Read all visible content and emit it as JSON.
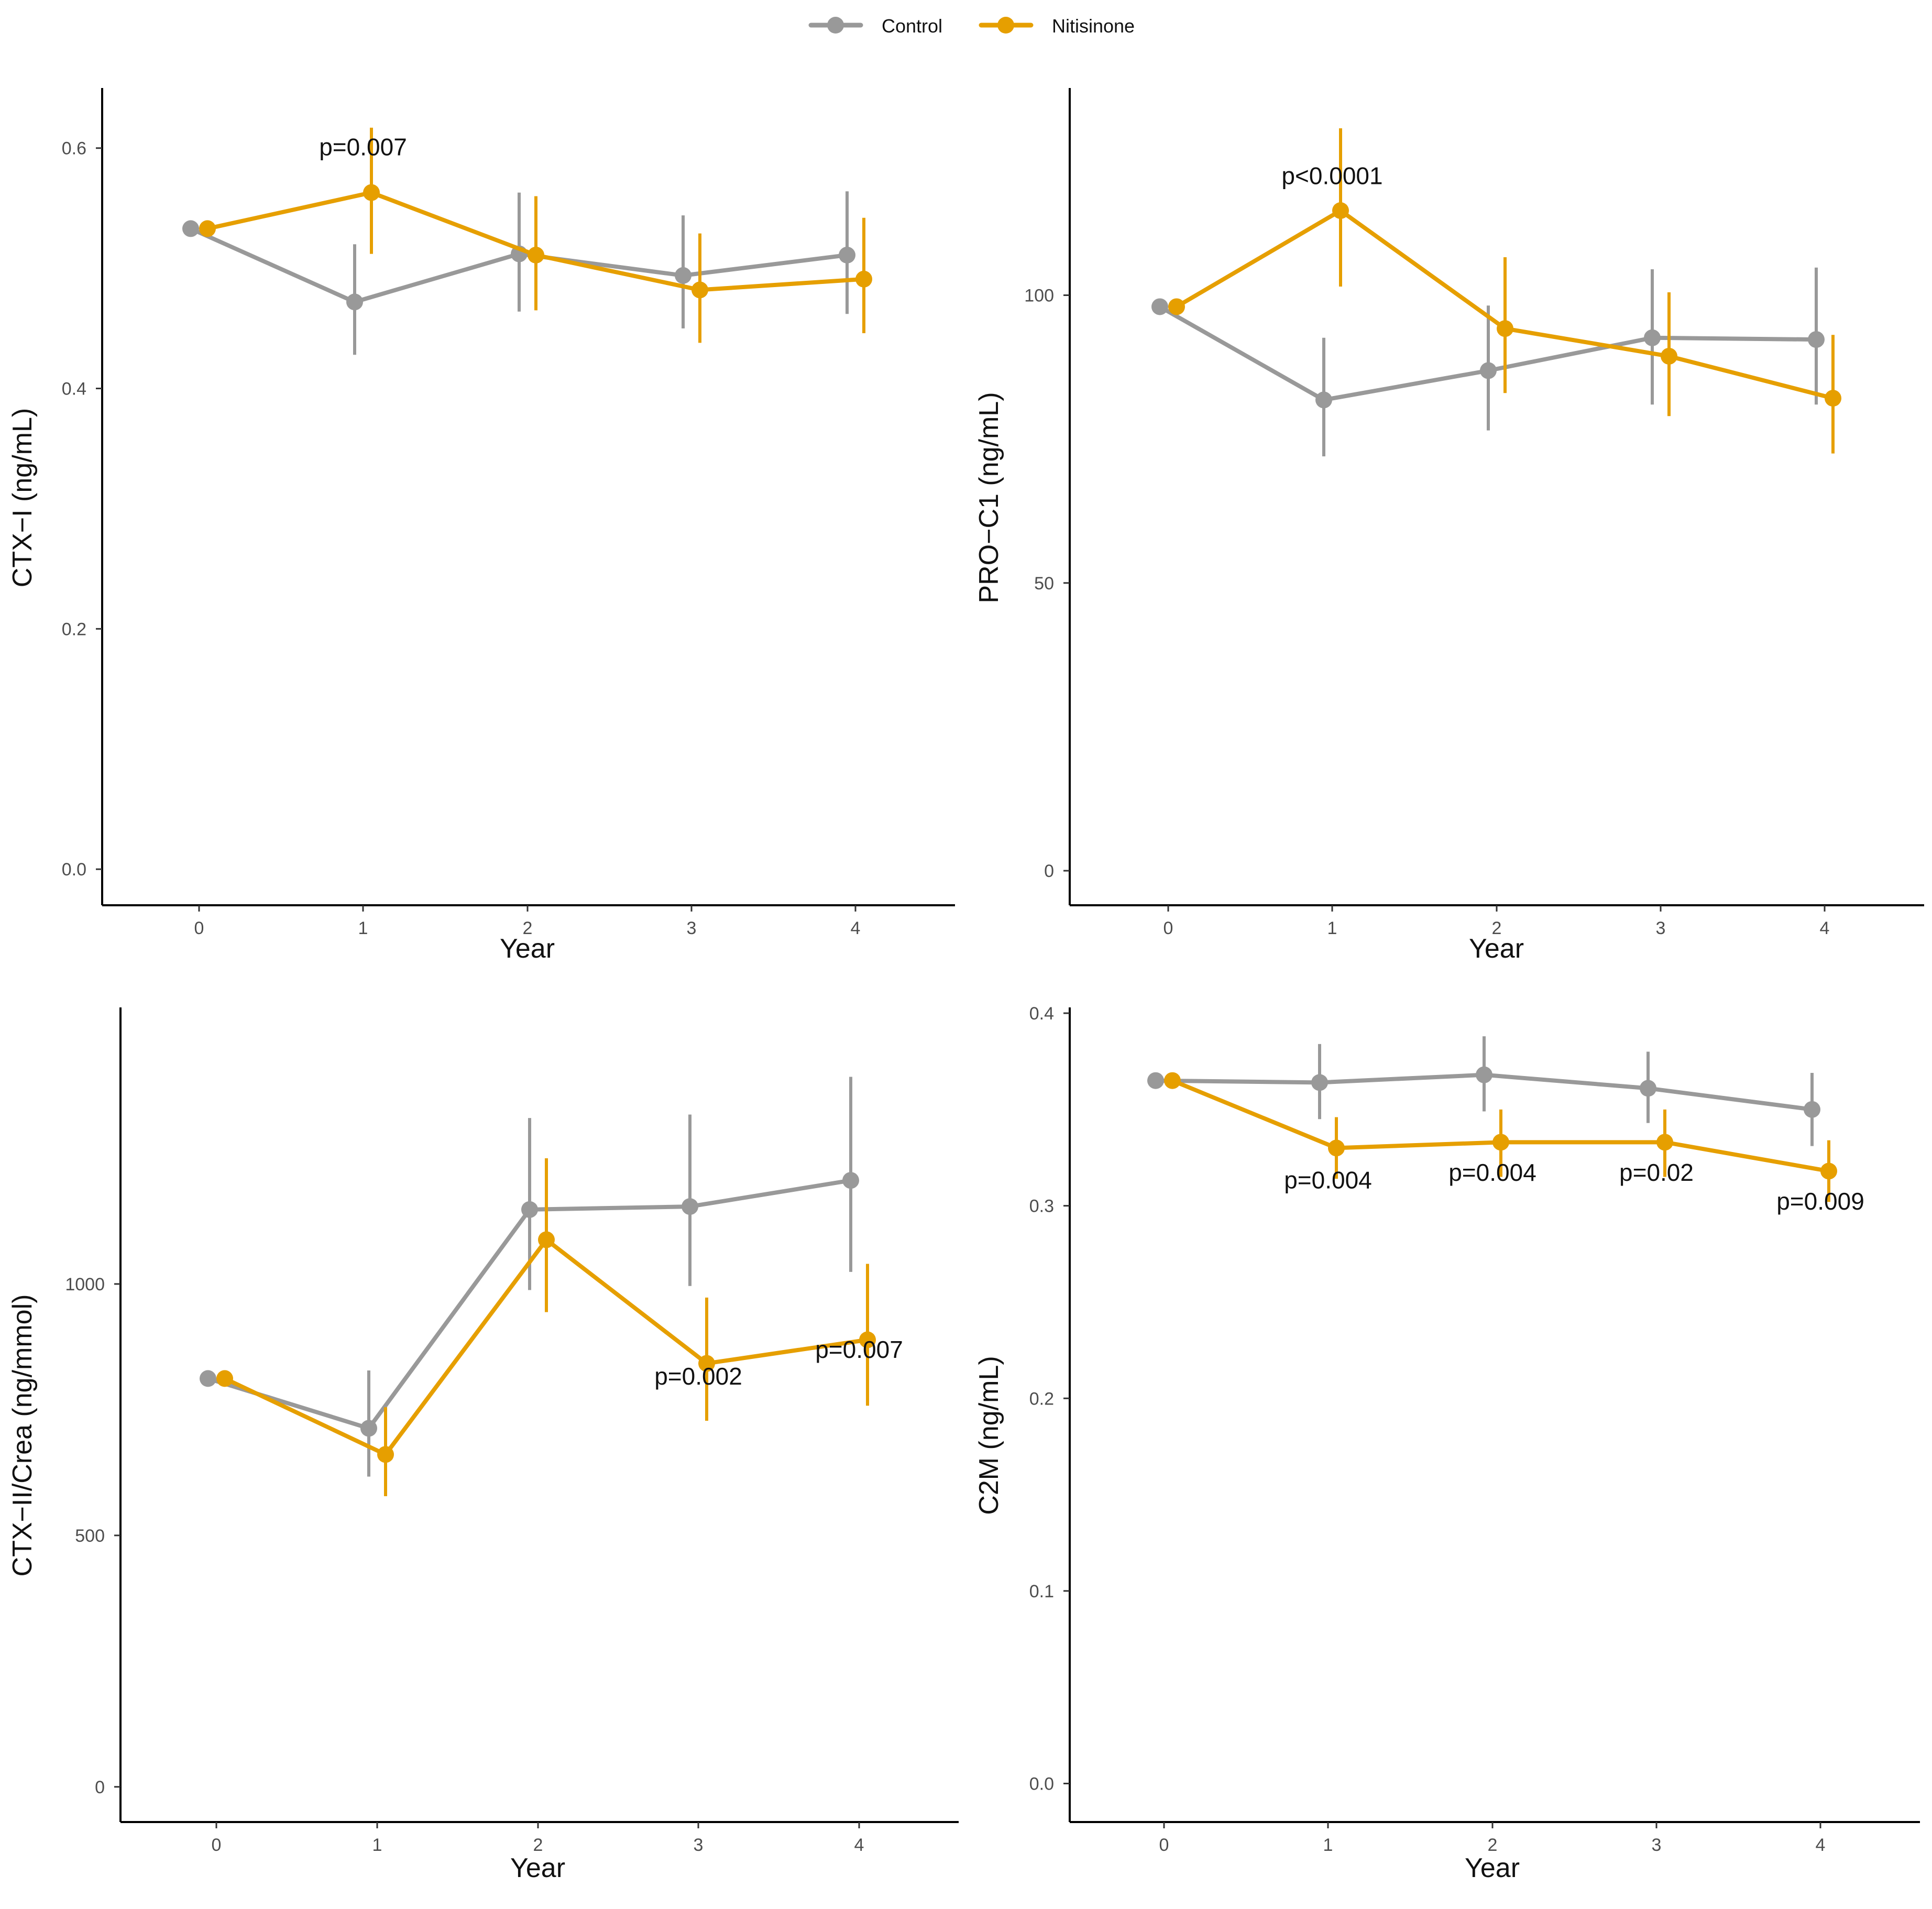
{
  "legend": {
    "entries": [
      {
        "name": "Control",
        "color": "#999999"
      },
      {
        "name": "Nitisinone",
        "color": "#E69F00"
      }
    ]
  },
  "chart_data": [
    {
      "type": "line",
      "title": "",
      "xlabel": "Year",
      "ylabel": "CTX−I (ng/mL)",
      "x": [
        0,
        1,
        2,
        3,
        4
      ],
      "xticks": [
        "0",
        "1",
        "2",
        "3",
        "4"
      ],
      "ylim": [
        -0.03,
        0.65
      ],
      "yticks": [
        0.0,
        0.2,
        0.4,
        0.6
      ],
      "ytick_labels": [
        "0.0",
        "0.2",
        "0.4",
        "0.6"
      ],
      "series": [
        {
          "name": "Control",
          "values": [
            0.533,
            0.472,
            0.512,
            0.494,
            0.511
          ],
          "lower": [
            0.533,
            0.428,
            0.464,
            0.45,
            0.462
          ],
          "upper": [
            0.533,
            0.52,
            0.563,
            0.544,
            0.564
          ]
        },
        {
          "name": "Nitisinone",
          "values": [
            0.533,
            0.563,
            0.511,
            0.482,
            0.491
          ],
          "lower": [
            0.533,
            0.512,
            0.465,
            0.438,
            0.446
          ],
          "upper": [
            0.533,
            0.617,
            0.56,
            0.529,
            0.542
          ]
        }
      ],
      "annotations": [
        {
          "text": "p=0.007",
          "x": 1,
          "y": 0.594
        }
      ]
    },
    {
      "type": "line",
      "title": "",
      "xlabel": "Year",
      "ylabel": "PRO−C1 (ng/mL)",
      "x": [
        0,
        1,
        2,
        3,
        4
      ],
      "xticks": [
        "0",
        "1",
        "2",
        "3",
        "4"
      ],
      "ylim": [
        -6,
        136
      ],
      "yticks": [
        0,
        50,
        100
      ],
      "ytick_labels": [
        "0",
        "50",
        "100"
      ],
      "series": [
        {
          "name": "Control",
          "values": [
            98,
            81.8,
            86.9,
            92.6,
            92.3
          ],
          "lower": [
            98,
            72,
            76.5,
            81,
            81
          ],
          "upper": [
            98,
            92.6,
            98.2,
            104.5,
            104.8
          ]
        },
        {
          "name": "Nitisinone",
          "values": [
            98,
            114.7,
            94.2,
            89.4,
            82.1
          ],
          "lower": [
            98,
            101.5,
            83,
            79,
            72.5
          ],
          "upper": [
            98,
            129,
            106.6,
            100.5,
            93.1
          ]
        }
      ],
      "annotations": [
        {
          "text": "p<0.0001",
          "x": 1,
          "y": 119.3
        }
      ]
    },
    {
      "type": "line",
      "title": "",
      "xlabel": "Year",
      "ylabel": "CTX−II/Crea (ng/mmol)",
      "x": [
        0,
        1,
        2,
        3,
        4
      ],
      "xticks": [
        "0",
        "1",
        "2",
        "3",
        "4"
      ],
      "ylim": [
        -70,
        1550
      ],
      "yticks": [
        0,
        500,
        1000
      ],
      "ytick_labels": [
        "0",
        "500",
        "1000"
      ],
      "series": [
        {
          "name": "Control",
          "values": [
            812,
            713,
            1148,
            1154,
            1206
          ],
          "lower": [
            812,
            617,
            988,
            996,
            1024
          ],
          "upper": [
            812,
            828,
            1330,
            1337,
            1412
          ]
        },
        {
          "name": "Nitisinone",
          "values": [
            812,
            661,
            1088,
            842,
            889
          ],
          "lower": [
            812,
            578,
            944,
            728,
            758
          ],
          "upper": [
            812,
            755,
            1250,
            973,
            1040
          ]
        }
      ],
      "annotations": [
        {
          "text": "p=0.002",
          "x": 3,
          "y": 800
        },
        {
          "text": "p=0.007",
          "x": 4,
          "y": 853
        }
      ]
    },
    {
      "type": "line",
      "title": "",
      "xlabel": "Year",
      "ylabel": "C2M (ng/mL)",
      "x": [
        0,
        1,
        2,
        3,
        4
      ],
      "xticks": [
        "0",
        "1",
        "2",
        "3",
        "4"
      ],
      "ylim": [
        -0.02,
        0.403
      ],
      "yticks": [
        0.0,
        0.1,
        0.2,
        0.3,
        0.4
      ],
      "ytick_labels": [
        "0.0",
        "0.1",
        "0.2",
        "0.3",
        "0.4"
      ],
      "series": [
        {
          "name": "Control",
          "values": [
            0.365,
            0.364,
            0.368,
            0.361,
            0.35
          ],
          "lower": [
            0.365,
            0.345,
            0.349,
            0.343,
            0.331
          ],
          "upper": [
            0.365,
            0.384,
            0.388,
            0.38,
            0.369
          ]
        },
        {
          "name": "Nitisinone",
          "values": [
            0.365,
            0.33,
            0.333,
            0.333,
            0.318
          ],
          "lower": [
            0.365,
            0.314,
            0.315,
            0.315,
            0.302
          ],
          "upper": [
            0.365,
            0.346,
            0.35,
            0.35,
            0.334
          ]
        }
      ],
      "annotations": [
        {
          "text": "p=0.004",
          "x": 1,
          "y": 0.309
        },
        {
          "text": "p=0.004",
          "x": 2,
          "y": 0.313
        },
        {
          "text": "p=0.02",
          "x": 3,
          "y": 0.313
        },
        {
          "text": "p=0.009",
          "x": 4,
          "y": 0.298
        }
      ]
    }
  ]
}
